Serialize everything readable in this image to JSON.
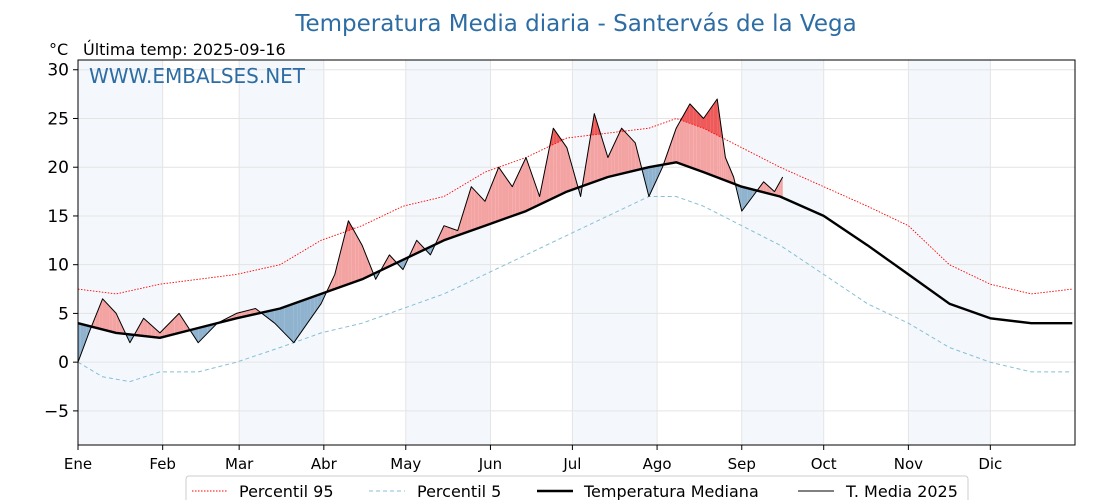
{
  "chart_data": {
    "type": "line",
    "title": "Temperatura Media diaria - Santervás de la Vega",
    "y_unit": "°C",
    "last_temp_label": "Última temp: 2025-09-16",
    "watermark": "WWW.EMBALSES.NET",
    "ylim": [
      -8.5,
      31
    ],
    "yticks": [
      30,
      25,
      20,
      15,
      10,
      5,
      0,
      -5
    ],
    "ytick_labels": [
      "30",
      "25",
      "20",
      "15",
      "10",
      "5",
      "0",
      "−5"
    ],
    "months": [
      "Ene",
      "Feb",
      "Mar",
      "Abr",
      "May",
      "Jun",
      "Jul",
      "Ago",
      "Sep",
      "Oct",
      "Nov",
      "Dic"
    ],
    "month_start_days": [
      1,
      32,
      60,
      91,
      121,
      152,
      182,
      213,
      244,
      274,
      305,
      335
    ],
    "xlim": [
      1,
      366
    ],
    "grid": true,
    "legend_position": "bottom",
    "colors": {
      "p95": "#ff0000",
      "p5": "#87bfd6",
      "median": "#000000",
      "y2025": "#000000",
      "above_fill": "#f4a3a3",
      "above_fill_strong": "#ee5a5a",
      "below_fill": "#8fb2cf",
      "shade": "#f4f8fc"
    },
    "series": [
      {
        "name": "Percentil 95",
        "style": "dotted",
        "points": [
          [
            1,
            7.5
          ],
          [
            15,
            7
          ],
          [
            31,
            8
          ],
          [
            45,
            8.5
          ],
          [
            59,
            9
          ],
          [
            75,
            10
          ],
          [
            90,
            12.5
          ],
          [
            105,
            14
          ],
          [
            120,
            16
          ],
          [
            135,
            17
          ],
          [
            150,
            19.5
          ],
          [
            165,
            21
          ],
          [
            180,
            23
          ],
          [
            195,
            23.5
          ],
          [
            210,
            24
          ],
          [
            220,
            25
          ],
          [
            230,
            24
          ],
          [
            244,
            22
          ],
          [
            258,
            20
          ],
          [
            274,
            18
          ],
          [
            290,
            16
          ],
          [
            305,
            14
          ],
          [
            320,
            10
          ],
          [
            335,
            8
          ],
          [
            350,
            7
          ],
          [
            365,
            7.5
          ]
        ]
      },
      {
        "name": "Percentil 5",
        "style": "dashed",
        "points": [
          [
            1,
            0
          ],
          [
            10,
            -1.5
          ],
          [
            20,
            -2
          ],
          [
            31,
            -1
          ],
          [
            45,
            -1
          ],
          [
            59,
            0
          ],
          [
            75,
            1.5
          ],
          [
            90,
            3
          ],
          [
            105,
            4
          ],
          [
            120,
            5.5
          ],
          [
            135,
            7
          ],
          [
            150,
            9
          ],
          [
            165,
            11
          ],
          [
            180,
            13
          ],
          [
            195,
            15
          ],
          [
            210,
            17
          ],
          [
            220,
            17
          ],
          [
            230,
            16
          ],
          [
            244,
            14
          ],
          [
            258,
            12
          ],
          [
            274,
            9
          ],
          [
            290,
            6
          ],
          [
            305,
            4
          ],
          [
            320,
            1.5
          ],
          [
            335,
            0
          ],
          [
            350,
            -1
          ],
          [
            365,
            -1
          ]
        ]
      },
      {
        "name": "Temperatura Mediana",
        "style": "thick",
        "points": [
          [
            1,
            4
          ],
          [
            15,
            3
          ],
          [
            31,
            2.5
          ],
          [
            45,
            3.5
          ],
          [
            59,
            4.5
          ],
          [
            75,
            5.5
          ],
          [
            90,
            7
          ],
          [
            105,
            8.5
          ],
          [
            120,
            10.5
          ],
          [
            135,
            12.5
          ],
          [
            150,
            14
          ],
          [
            165,
            15.5
          ],
          [
            180,
            17.5
          ],
          [
            195,
            19
          ],
          [
            210,
            20
          ],
          [
            220,
            20.5
          ],
          [
            230,
            19.5
          ],
          [
            244,
            18
          ],
          [
            258,
            17
          ],
          [
            274,
            15
          ],
          [
            290,
            12
          ],
          [
            305,
            9
          ],
          [
            320,
            6
          ],
          [
            335,
            4.5
          ],
          [
            350,
            4
          ],
          [
            365,
            4
          ]
        ]
      },
      {
        "name": "T. Media 2025",
        "style": "thin",
        "points": [
          [
            1,
            0
          ],
          [
            5,
            3
          ],
          [
            10,
            6.5
          ],
          [
            15,
            5
          ],
          [
            20,
            2
          ],
          [
            25,
            4.5
          ],
          [
            31,
            3
          ],
          [
            38,
            5
          ],
          [
            45,
            2
          ],
          [
            52,
            4
          ],
          [
            59,
            5
          ],
          [
            66,
            5.5
          ],
          [
            73,
            4
          ],
          [
            80,
            2
          ],
          [
            85,
            4
          ],
          [
            90,
            6
          ],
          [
            95,
            9
          ],
          [
            100,
            14.5
          ],
          [
            105,
            12
          ],
          [
            110,
            8.5
          ],
          [
            115,
            11
          ],
          [
            120,
            9.5
          ],
          [
            125,
            12.5
          ],
          [
            130,
            11
          ],
          [
            135,
            14
          ],
          [
            140,
            13.5
          ],
          [
            145,
            18
          ],
          [
            150,
            16.5
          ],
          [
            155,
            20
          ],
          [
            160,
            18
          ],
          [
            165,
            21
          ],
          [
            170,
            17
          ],
          [
            175,
            24
          ],
          [
            180,
            22
          ],
          [
            185,
            17
          ],
          [
            190,
            25.5
          ],
          [
            195,
            21
          ],
          [
            200,
            24
          ],
          [
            205,
            22.5
          ],
          [
            210,
            17
          ],
          [
            215,
            20
          ],
          [
            220,
            24
          ],
          [
            225,
            26.5
          ],
          [
            230,
            25
          ],
          [
            235,
            27
          ],
          [
            238,
            21
          ],
          [
            241,
            19
          ],
          [
            244,
            15.5
          ],
          [
            248,
            17
          ],
          [
            252,
            18.5
          ],
          [
            256,
            17.5
          ],
          [
            259,
            19
          ]
        ]
      }
    ]
  },
  "legend": {
    "p95": "Percentil 95",
    "p5": "Percentil 5",
    "median": "Temperatura Mediana",
    "y2025": "T. Media 2025"
  }
}
